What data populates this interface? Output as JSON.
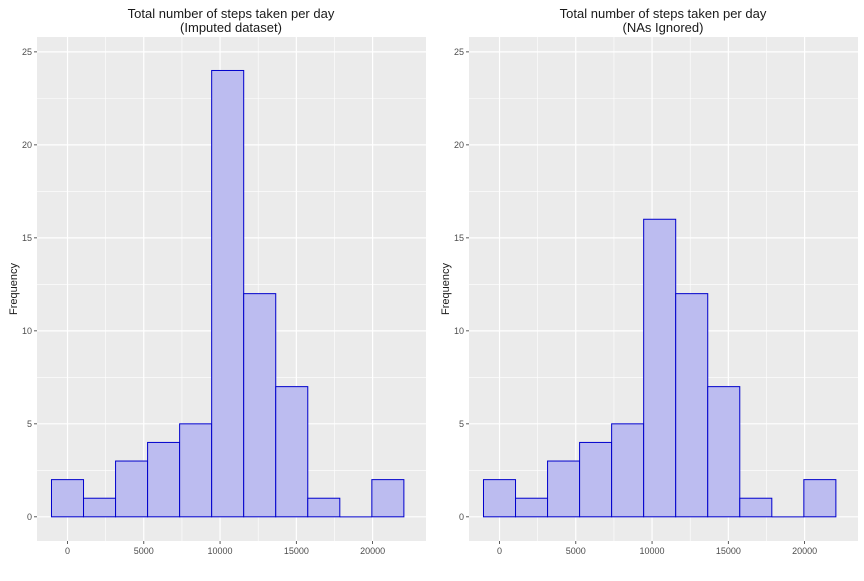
{
  "colors": {
    "panel_bg": "#ebebeb",
    "grid": "#ffffff",
    "bar_fill": "#bcbcf0",
    "bar_stroke": "#0000cc",
    "text": "#1a1a1a",
    "tick_text": "#4d4d4d"
  },
  "chart_data": [
    {
      "type": "bar",
      "title_line1": "Total number of steps taken per day",
      "title_line2": "(Imputed dataset)",
      "ylabel": "Frequency",
      "xlabel": "",
      "xlim": [
        -2000,
        23500
      ],
      "ylim": [
        -1.3,
        25.8
      ],
      "xticks": [
        0,
        5000,
        10000,
        15000,
        20000
      ],
      "xtick_labels": [
        "0",
        "5000",
        "10000",
        "15000",
        "20000"
      ],
      "yticks": [
        0,
        5,
        10,
        15,
        20,
        25
      ],
      "ytick_labels": [
        "0",
        "5",
        "10",
        "15",
        "20",
        "25"
      ],
      "grid": true,
      "bin_edges": [
        -1050,
        1050,
        3150,
        5250,
        7350,
        9450,
        11550,
        13650,
        15750,
        17850,
        19950,
        22050
      ],
      "values": [
        2,
        1,
        3,
        4,
        5,
        24,
        12,
        7,
        1,
        0,
        2
      ]
    },
    {
      "type": "bar",
      "title_line1": "Total number of steps taken per day",
      "title_line2": "(NAs Ignored)",
      "ylabel": "Frequency",
      "xlabel": "",
      "xlim": [
        -2000,
        23500
      ],
      "ylim": [
        -1.3,
        25.8
      ],
      "xticks": [
        0,
        5000,
        10000,
        15000,
        20000
      ],
      "xtick_labels": [
        "0",
        "5000",
        "10000",
        "15000",
        "20000"
      ],
      "yticks": [
        0,
        5,
        10,
        15,
        20,
        25
      ],
      "ytick_labels": [
        "0",
        "5",
        "10",
        "15",
        "20",
        "25"
      ],
      "grid": true,
      "bin_edges": [
        -1050,
        1050,
        3150,
        5250,
        7350,
        9450,
        11550,
        13650,
        15750,
        17850,
        19950,
        22050
      ],
      "values": [
        2,
        1,
        3,
        4,
        5,
        16,
        12,
        7,
        1,
        0,
        2
      ]
    }
  ]
}
